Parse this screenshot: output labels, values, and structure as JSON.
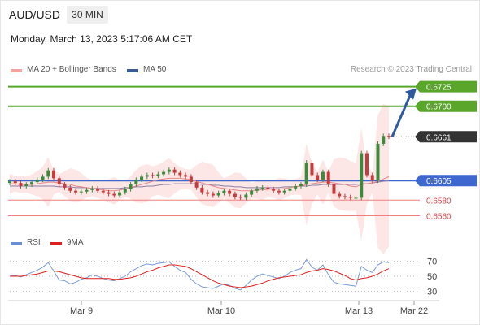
{
  "header": {
    "symbol": "AUD/USD",
    "timeframe": "30 MIN",
    "datetime": "Monday, March 13, 2023 5:17:06 AM CET"
  },
  "legend": {
    "items": [
      {
        "label": "MA 20 + Bollinger Bands",
        "color": "#f4a3a0"
      },
      {
        "label": "MA 50",
        "color": "#3b5b96"
      }
    ],
    "credit": "Research © 2023 Trading Central"
  },
  "rsi_legend": {
    "items": [
      {
        "label": "RSI",
        "color": "#6b8fd6"
      },
      {
        "label": "9MA",
        "color": "#e02020"
      }
    ]
  },
  "colors": {
    "resistance": "#5aa62a",
    "pivot": "#3f67d0",
    "support": "#f08080",
    "current": "#333333",
    "candle_up": "#3c8a3c",
    "candle_down": "#c93a3a",
    "arrow": "#2f5a9f",
    "band_fill": "#fde3e3"
  },
  "chart_data": [
    {
      "type": "line",
      "title": "",
      "x_ticks": [
        "Mar 9",
        "Mar 10",
        "Mar 13",
        "Mar 22"
      ],
      "ylim": [
        0.6545,
        0.6735
      ],
      "levels": [
        {
          "value": 0.6725,
          "label": "0.6725",
          "kind": "resistance"
        },
        {
          "value": 0.67,
          "label": "0.6700",
          "kind": "resistance"
        },
        {
          "value": 0.6661,
          "label": "0.6661",
          "kind": "current"
        },
        {
          "value": 0.6605,
          "label": "0.6605",
          "kind": "pivot"
        },
        {
          "value": 0.658,
          "label": "0.6580",
          "kind": "support"
        },
        {
          "value": 0.656,
          "label": "0.6560",
          "kind": "support"
        }
      ],
      "series": [
        {
          "name": "Price",
          "values": [
            0.6604,
            0.6602,
            0.6598,
            0.66,
            0.6603,
            0.6606,
            0.661,
            0.6618,
            0.6608,
            0.66,
            0.6596,
            0.6592,
            0.659,
            0.6591,
            0.6593,
            0.6595,
            0.6592,
            0.659,
            0.6588,
            0.6586,
            0.659,
            0.6594,
            0.66,
            0.6606,
            0.661,
            0.6612,
            0.6611,
            0.6613,
            0.6616,
            0.6619,
            0.6615,
            0.6612,
            0.661,
            0.6603,
            0.6596,
            0.659,
            0.6588,
            0.6586,
            0.6589,
            0.6592,
            0.6588,
            0.6584,
            0.6583,
            0.6587,
            0.6592,
            0.6595,
            0.6596,
            0.6594,
            0.6592,
            0.659,
            0.6592,
            0.6595,
            0.6598,
            0.66,
            0.6628,
            0.6612,
            0.6606,
            0.6616,
            0.66,
            0.6588,
            0.6585,
            0.6584,
            0.6583,
            0.6583,
            0.664,
            0.6612,
            0.6605,
            0.6652,
            0.6662,
            0.6661
          ]
        },
        {
          "name": "MA 20",
          "values": [
            0.6601,
            0.6601,
            0.66,
            0.66,
            0.66,
            0.6601,
            0.6602,
            0.6603,
            0.6603,
            0.6602,
            0.6601,
            0.66,
            0.6598,
            0.6597,
            0.6596,
            0.6595,
            0.6594,
            0.6593,
            0.6592,
            0.6592,
            0.6593,
            0.6594,
            0.6596,
            0.6598,
            0.66,
            0.6602,
            0.6604,
            0.6606,
            0.6607,
            0.6608,
            0.6608,
            0.6608,
            0.6607,
            0.6606,
            0.6604,
            0.6602,
            0.66,
            0.6598,
            0.6596,
            0.6595,
            0.6594,
            0.6593,
            0.6592,
            0.6592,
            0.6592,
            0.6593,
            0.6593,
            0.6594,
            0.6594,
            0.6594,
            0.6595,
            0.6596,
            0.6597,
            0.6598,
            0.66,
            0.6601,
            0.6602,
            0.6603,
            0.6603,
            0.6602,
            0.6601,
            0.66,
            0.6598,
            0.6597,
            0.66,
            0.6601,
            0.6602,
            0.6604,
            0.6607,
            0.661
          ]
        },
        {
          "name": "MA 50",
          "values": [
            0.6598,
            0.6598,
            0.6598,
            0.6598,
            0.6598,
            0.6598,
            0.6598,
            0.6598,
            0.6598,
            0.6597,
            0.6597,
            0.6597,
            0.6596,
            0.6596,
            0.6596,
            0.6595,
            0.6595,
            0.6595,
            0.6595,
            0.6595,
            0.6595,
            0.6596,
            0.6596,
            0.6597,
            0.6597,
            0.6598,
            0.6598,
            0.6599,
            0.66,
            0.66,
            0.6601,
            0.6601,
            0.6601,
            0.6601,
            0.6601,
            0.66,
            0.66,
            0.6599,
            0.6599,
            0.6598,
            0.6598,
            0.6597,
            0.6597,
            0.6596,
            0.6596,
            0.6596,
            0.6596,
            0.6596,
            0.6596,
            0.6596,
            0.6597,
            0.6597,
            0.6597,
            0.6598,
            0.6598,
            0.6599,
            0.6599,
            0.66,
            0.66,
            0.66,
            0.66,
            0.66,
            0.66,
            0.66,
            0.6601,
            0.6601,
            0.6602,
            0.6603,
            0.6604,
            0.6605
          ]
        }
      ],
      "forecast": {
        "from": 0.6661,
        "to": 0.6725
      }
    },
    {
      "type": "line",
      "title": "",
      "ylim": [
        20,
        80
      ],
      "y_ticks": [
        70,
        50,
        30
      ],
      "series": [
        {
          "name": "RSI",
          "values": [
            50,
            51,
            49,
            52,
            55,
            58,
            62,
            68,
            57,
            45,
            44,
            40,
            42,
            46,
            48,
            52,
            50,
            47,
            45,
            44,
            47,
            50,
            56,
            60,
            64,
            66,
            65,
            67,
            68,
            69,
            63,
            58,
            55,
            46,
            40,
            36,
            35,
            34,
            37,
            40,
            38,
            34,
            32,
            38,
            45,
            50,
            53,
            51,
            49,
            47,
            50,
            55,
            58,
            60,
            72,
            62,
            58,
            65,
            52,
            42,
            40,
            39,
            38,
            37,
            63,
            58,
            55,
            65,
            69,
            68
          ]
        },
        {
          "name": "9MA",
          "values": [
            50,
            50,
            50,
            51,
            52,
            53,
            55,
            57,
            57,
            56,
            54,
            52,
            50,
            48,
            47,
            47,
            47,
            47,
            47,
            46,
            46,
            47,
            48,
            50,
            53,
            56,
            58,
            61,
            63,
            65,
            65,
            64,
            63,
            60,
            56,
            52,
            48,
            44,
            41,
            39,
            37,
            36,
            35,
            36,
            37,
            39,
            41,
            44,
            46,
            48,
            49,
            50,
            51,
            52,
            55,
            57,
            58,
            60,
            59,
            57,
            54,
            51,
            47,
            45,
            47,
            48,
            50,
            53,
            57,
            60
          ]
        }
      ]
    }
  ]
}
